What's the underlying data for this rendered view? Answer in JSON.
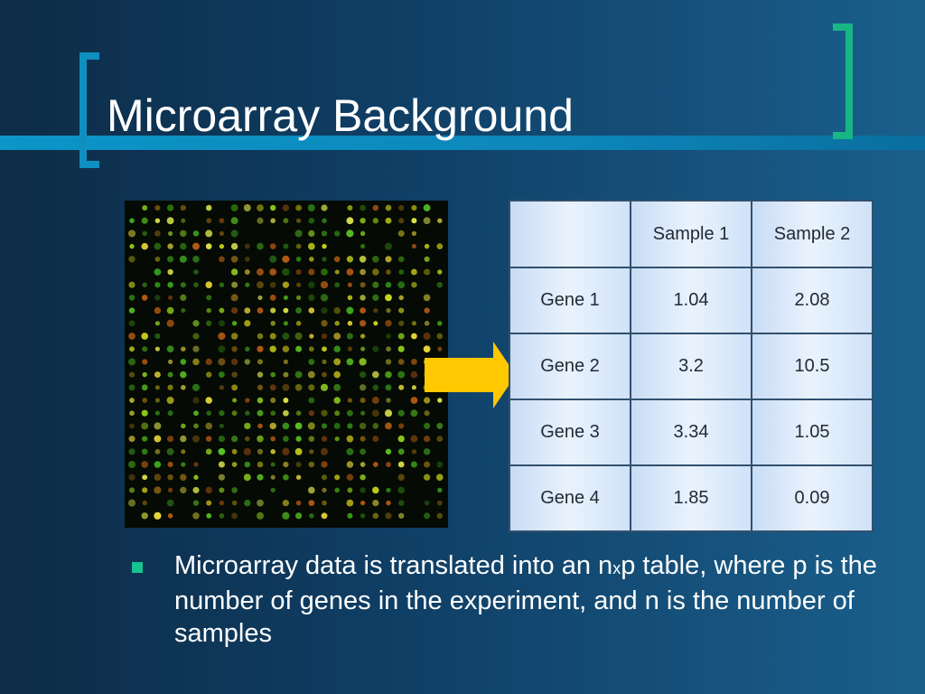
{
  "slide": {
    "title": "Microarray Background",
    "colors": {
      "background_left": "#0d2c47",
      "background_right": "#1a5f8c",
      "title_bar": "#0c95c7",
      "left_bracket": "#0f8fc0",
      "right_bracket": "#19b685",
      "arrow": "#ffc800",
      "bullet": "#16c28f"
    }
  },
  "image": {
    "description_icon": "microarray-image"
  },
  "table": {
    "columns": [
      "",
      "Sample 1",
      "Sample 2"
    ],
    "rows": [
      {
        "gene": "Gene 1",
        "s1": "1.04",
        "s2": "2.08"
      },
      {
        "gene": "Gene 2",
        "s1": "3.2",
        "s2": "10.5"
      },
      {
        "gene": "Gene 3",
        "s1": "3.34",
        "s2": "1.05"
      },
      {
        "gene": "Gene 4",
        "s1": "1.85",
        "s2": "0.09"
      }
    ]
  },
  "bullet": {
    "part1": "Microarray data is translated into an n",
    "part2": "x",
    "part3": "p table, where p is the number of genes in the experiment, and n is the number of samples"
  }
}
